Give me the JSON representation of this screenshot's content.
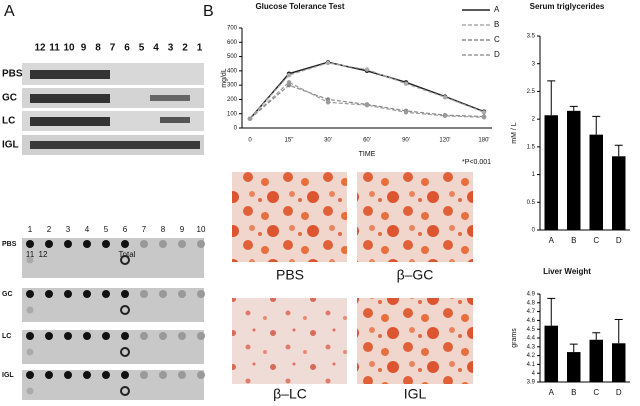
{
  "figure": {
    "panel_a": "A",
    "panel_b": "B",
    "lanes": [
      "12",
      "11",
      "10",
      "9",
      "8",
      "7",
      "6",
      "5",
      "4",
      "3",
      "2",
      "1"
    ],
    "blot_rows": [
      "PBS",
      "GC",
      "LC",
      "IGL"
    ],
    "dot_numbers": [
      "1",
      "2",
      "3",
      "4",
      "5",
      "6",
      "7",
      "8",
      "9",
      "10"
    ],
    "dot_extra": [
      "11",
      "12",
      "Total"
    ],
    "dot_rows": [
      "PBS",
      "GC",
      "LC",
      "IGL"
    ],
    "captions": [
      "PBS",
      "β–GC",
      "β–LC",
      "IGL"
    ],
    "note": "*P<0.001"
  },
  "chart_data": [
    {
      "type": "line",
      "title": "Glucose Tolerance Test",
      "ylabel": "mg/dL",
      "xlabel": "TIME",
      "categories": [
        "0",
        "15''",
        "30'",
        "60'",
        "90'",
        "120'",
        "180'"
      ],
      "ylim": [
        0,
        700
      ],
      "yticks": [
        0,
        100,
        200,
        300,
        400,
        500,
        600,
        700
      ],
      "series": [
        {
          "name": "A",
          "color": "#222222",
          "values": [
            65,
            380,
            460,
            400,
            320,
            220,
            115
          ]
        },
        {
          "name": "B",
          "color": "#aaaaaa",
          "values": [
            65,
            370,
            455,
            410,
            310,
            215,
            110
          ]
        },
        {
          "name": "C",
          "color": "#888888",
          "values": [
            65,
            300,
            200,
            165,
            120,
            90,
            80
          ]
        },
        {
          "name": "D",
          "color": "#9a9a9a",
          "values": [
            65,
            320,
            180,
            160,
            110,
            85,
            75
          ]
        }
      ]
    },
    {
      "type": "bar",
      "title": "Serum triglycerides",
      "ylabel": "mM / L",
      "color": "#000000",
      "categories": [
        "A",
        "B",
        "C",
        "D"
      ],
      "values": [
        2.07,
        2.15,
        1.72,
        1.33
      ],
      "errors": [
        0.62,
        0.08,
        0.33,
        0.2
      ],
      "ylim": [
        0,
        3.5
      ],
      "yticks": [
        0,
        0.5,
        1,
        1.5,
        2,
        2.5,
        3,
        3.5
      ]
    },
    {
      "type": "bar",
      "title": "Liver Weight",
      "ylabel": "grams",
      "color": "#000000",
      "categories": [
        "A",
        "B",
        "C",
        "D"
      ],
      "values": [
        4.54,
        4.24,
        4.38,
        4.34
      ],
      "errors": [
        0.31,
        0.09,
        0.08,
        0.27
      ],
      "ylim": [
        3.9,
        4.9
      ],
      "yticks": [
        3.9,
        4,
        4.1,
        4.2,
        4.3,
        4.4,
        4.5,
        4.6,
        4.7,
        4.8,
        4.9
      ]
    }
  ]
}
